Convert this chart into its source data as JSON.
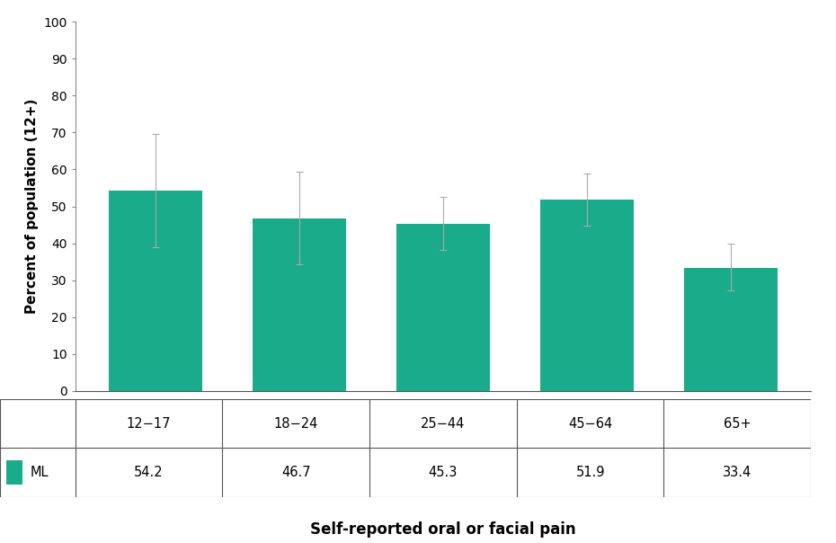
{
  "categories": [
    "12−17",
    "18−24",
    "25−44",
    "45−64",
    "65+"
  ],
  "values": [
    54.2,
    46.7,
    45.3,
    51.9,
    33.4
  ],
  "errors_upper": [
    15.3,
    12.8,
    7.2,
    7.1,
    6.6
  ],
  "errors_lower": [
    15.3,
    12.3,
    7.2,
    7.1,
    6.1
  ],
  "bar_color": "#1aab8a",
  "error_color": "#aaaaaa",
  "ylabel": "Percent of population (12+)",
  "xlabel": "Self-reported oral or facial pain",
  "ylim": [
    0,
    100
  ],
  "yticks": [
    0,
    10,
    20,
    30,
    40,
    50,
    60,
    70,
    80,
    90,
    100
  ],
  "legend_label": "ML",
  "background_color": "#ffffff",
  "table_line_color": "#555555"
}
